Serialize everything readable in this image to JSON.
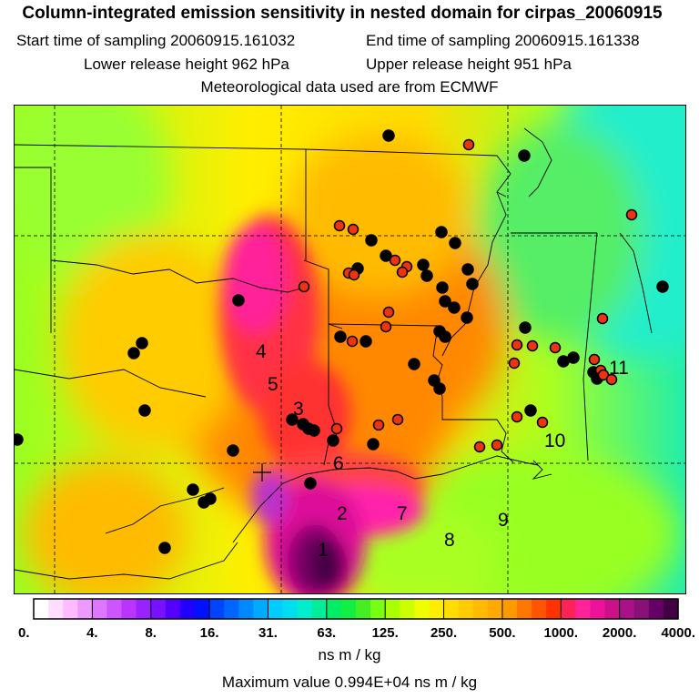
{
  "header": {
    "title": "Column-integrated emission sensitivity in nested domain for cirpas_20060915",
    "start_time": "Start time of sampling 20060915.161032",
    "end_time": "End time of sampling 20060915.161338",
    "lower_release": "Lower release height  962 hPa",
    "upper_release": "Upper release height  951 hPa",
    "met_data": "Meteorological data used are from ECMWF"
  },
  "map": {
    "labels": [
      "1",
      "2",
      "3",
      "4",
      "5",
      "6",
      "7",
      "8",
      "9",
      "10",
      "11"
    ],
    "colors": {
      "background_low": "#33ee77",
      "mid": "#ccff22",
      "yellow": "#ffee00",
      "orange": "#ff9900",
      "red": "#ff3333",
      "magenta": "#ff22aa",
      "purple": "#880077",
      "dark": "#440044",
      "station_red": "#ee3311",
      "station_black": "#000000"
    }
  },
  "colorbar": {
    "tick_labels": [
      "0.",
      "4.",
      "8.",
      "16.",
      "31.",
      "63.",
      "125.",
      "250.",
      "500.",
      "1000.",
      "2000.",
      "4000."
    ],
    "unit": "ns m / kg",
    "colors": [
      "#ffffff",
      "#ffddff",
      "#ffbbff",
      "#ee99ff",
      "#dd77ff",
      "#cc55ff",
      "#bb33ff",
      "#9922ff",
      "#7711ff",
      "#5500ff",
      "#2200ff",
      "#0011ff",
      "#0044ff",
      "#0066ff",
      "#0088ff",
      "#00aaff",
      "#00ccff",
      "#00ddee",
      "#00eecc",
      "#00ee99",
      "#00ee66",
      "#11ee44",
      "#44ee22",
      "#77ff11",
      "#aaff00",
      "#ccff00",
      "#eeff00",
      "#ffee00",
      "#ffdd00",
      "#ffcc00",
      "#ffbb00",
      "#ffaa00",
      "#ff9900",
      "#ff7700",
      "#ff5500",
      "#ff3300",
      "#ff2255",
      "#ff2299",
      "#ee1199",
      "#cc1188",
      "#aa1188",
      "#881177",
      "#660066",
      "#440044"
    ]
  },
  "footer": {
    "max_value": "Maximum value  0.994E+04 ns m / kg"
  }
}
